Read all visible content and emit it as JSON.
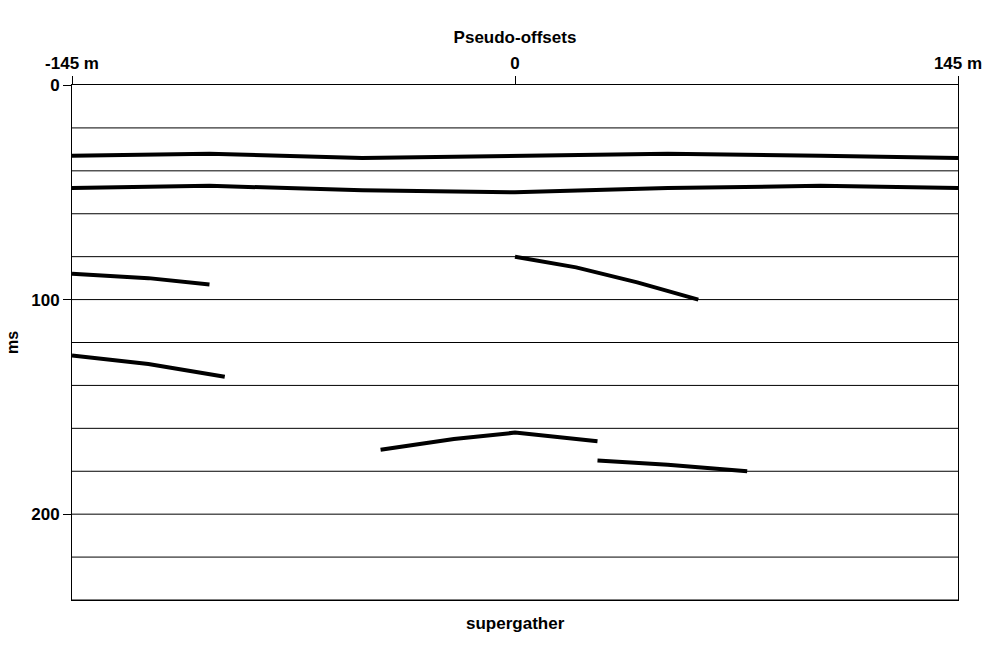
{
  "chart_data": {
    "type": "line",
    "xlabel": "Pseudo-offsets",
    "ylabel": "ms",
    "caption": "supergather",
    "xlim": [
      -145,
      145
    ],
    "xticks": [
      {
        "value": -145,
        "label": "-145 m"
      },
      0,
      {
        "value": 145,
        "label": "145 m"
      }
    ],
    "ylim": [
      0,
      240
    ],
    "yticks": [
      0,
      100,
      200
    ],
    "ygrid": [
      20,
      40,
      60,
      80,
      100,
      120,
      140,
      160,
      180,
      200,
      220,
      240
    ],
    "grid": true,
    "color": "#000000",
    "series": [
      {
        "x": [
          -145,
          -100,
          -50,
          0,
          50,
          100,
          145
        ],
        "values": [
          33,
          32,
          34,
          33,
          32,
          33,
          34
        ]
      },
      {
        "x": [
          -145,
          -100,
          -50,
          0,
          50,
          100,
          145
        ],
        "values": [
          48,
          47,
          49,
          50,
          48,
          47,
          48
        ]
      },
      {
        "x": [
          -145,
          -120,
          -100
        ],
        "values": [
          88,
          90,
          93
        ]
      },
      {
        "x": [
          0,
          20,
          40,
          60
        ],
        "values": [
          80,
          85,
          92,
          100
        ]
      },
      {
        "x": [
          -145,
          -120,
          -95
        ],
        "values": [
          126,
          130,
          136
        ]
      },
      {
        "x": [
          -44,
          -20,
          0,
          27
        ],
        "values": [
          170,
          165,
          162,
          166
        ]
      },
      {
        "x": [
          27,
          50,
          76
        ],
        "values": [
          175,
          177,
          180
        ]
      }
    ]
  }
}
